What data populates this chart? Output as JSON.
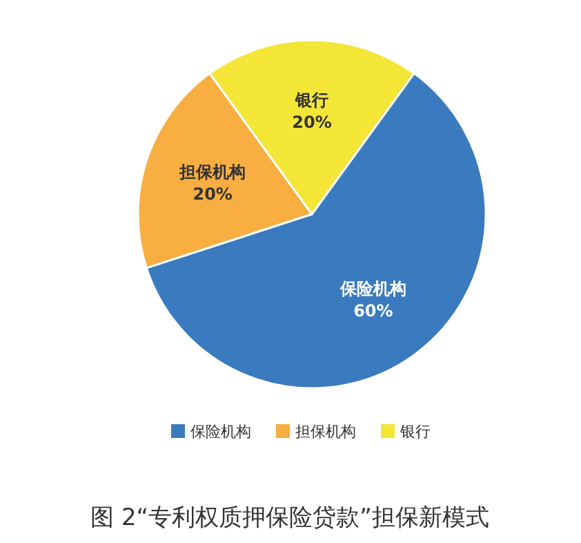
{
  "chart_data": {
    "type": "pie",
    "title": "图 2“专利权质押保险贷款”担保新模式",
    "categories": [
      "保险机构",
      "担保机构",
      "银行"
    ],
    "values": [
      60,
      20,
      20
    ],
    "colors": [
      "#3a7bbf",
      "#f9ae42",
      "#f3e637"
    ],
    "value_labels": [
      "60%",
      "20%",
      "20%"
    ],
    "legend": "bottom"
  }
}
